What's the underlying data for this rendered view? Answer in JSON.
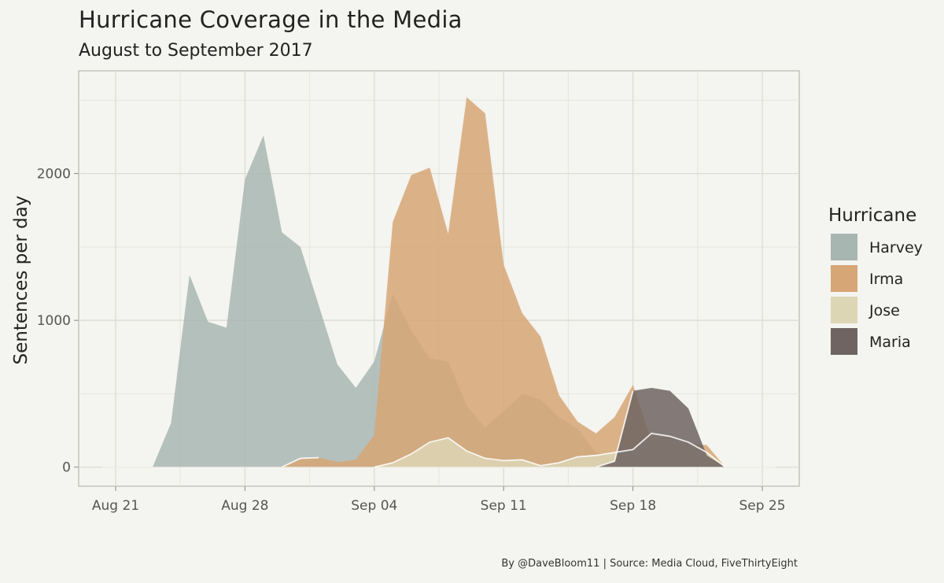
{
  "title": "Hurricane Coverage in the Media",
  "subtitle": "August to September 2017",
  "caption": "By @DaveBloom11  |  Source: Media Cloud, FiveThirtyEight",
  "chart_data": {
    "type": "area",
    "ylabel": "Sentences per day",
    "xlabel": "",
    "x_ticks": [
      "Aug 21",
      "Aug 28",
      "Sep 04",
      "Sep 11",
      "Sep 18",
      "Sep 25"
    ],
    "y_ticks": [
      0,
      1000,
      2000
    ],
    "xlim": [
      "2017-08-19",
      "2017-09-27"
    ],
    "ylim": [
      -130,
      2700
    ],
    "grid": true,
    "legend_title": "Hurricane",
    "legend_position": "right",
    "x": [
      "2017-08-23",
      "2017-08-24",
      "2017-08-25",
      "2017-08-26",
      "2017-08-27",
      "2017-08-28",
      "2017-08-29",
      "2017-08-30",
      "2017-08-31",
      "2017-09-01",
      "2017-09-02",
      "2017-09-03",
      "2017-09-04",
      "2017-09-05",
      "2017-09-06",
      "2017-09-07",
      "2017-09-08",
      "2017-09-09",
      "2017-09-10",
      "2017-09-11",
      "2017-09-12",
      "2017-09-13",
      "2017-09-14",
      "2017-09-15",
      "2017-09-16",
      "2017-09-17",
      "2017-09-18",
      "2017-09-19",
      "2017-09-20",
      "2017-09-21",
      "2017-09-22",
      "2017-09-23"
    ],
    "series": [
      {
        "name": "Harvey",
        "color": "#a8b6b2",
        "values": [
          0,
          300,
          1310,
          990,
          950,
          1960,
          2260,
          1600,
          1500,
          1100,
          700,
          540,
          720,
          1180,
          930,
          740,
          720,
          420,
          270,
          380,
          500,
          460,
          340,
          260,
          100,
          80,
          60,
          80,
          30,
          0,
          0,
          0
        ]
      },
      {
        "name": "Irma",
        "color": "#d6a676",
        "values": [
          0,
          0,
          0,
          0,
          0,
          0,
          0,
          0,
          60,
          65,
          35,
          50,
          220,
          1670,
          1990,
          2040,
          1590,
          2520,
          2410,
          1380,
          1050,
          890,
          490,
          310,
          230,
          340,
          560,
          180,
          220,
          160,
          150,
          0
        ]
      },
      {
        "name": "Jose",
        "color": "#ddd6b5",
        "values": [
          0,
          0,
          0,
          0,
          0,
          0,
          0,
          0,
          0,
          0,
          0,
          0,
          0,
          30,
          90,
          170,
          200,
          110,
          60,
          45,
          50,
          10,
          30,
          70,
          80,
          100,
          120,
          230,
          210,
          170,
          100,
          0
        ]
      },
      {
        "name": "Maria",
        "color": "#6f6461",
        "values": [
          0,
          0,
          0,
          0,
          0,
          0,
          0,
          0,
          0,
          0,
          0,
          0,
          0,
          0,
          0,
          0,
          0,
          0,
          0,
          0,
          0,
          0,
          0,
          0,
          0,
          40,
          520,
          540,
          520,
          400,
          80,
          0
        ]
      }
    ]
  }
}
